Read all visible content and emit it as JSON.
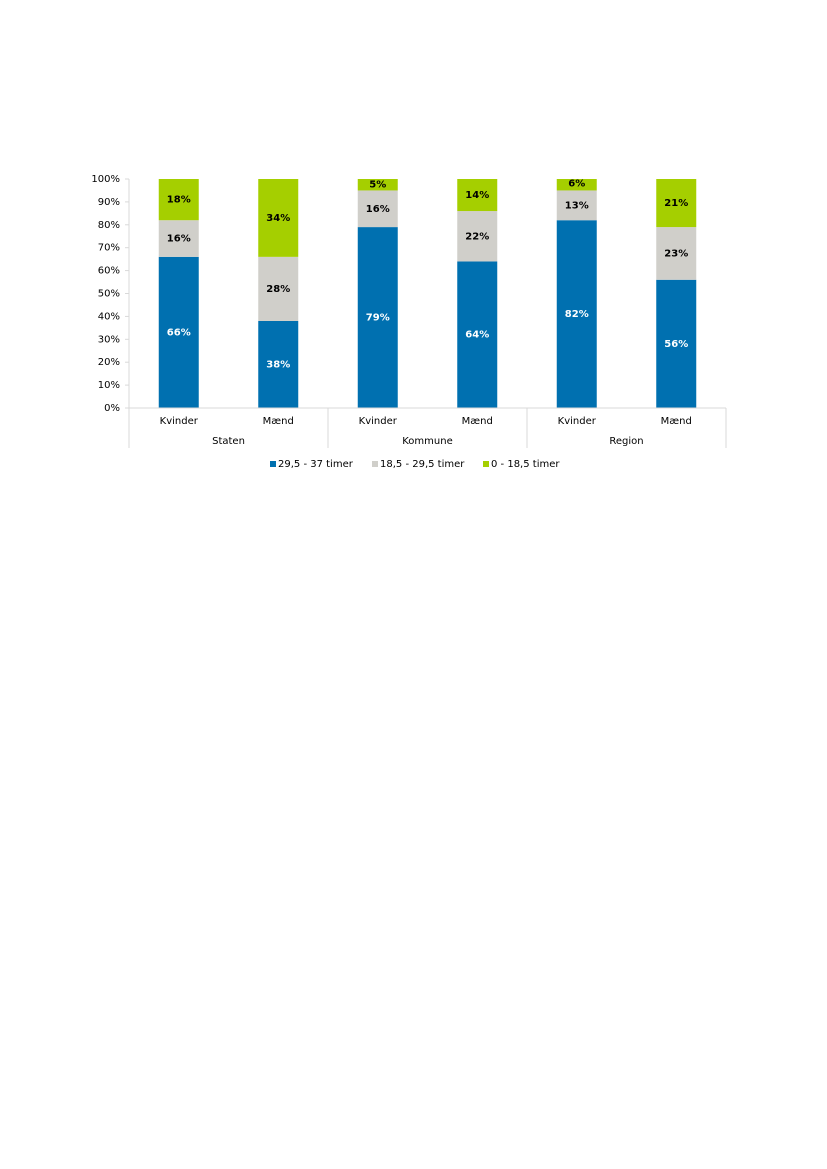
{
  "chart_data": {
    "type": "stacked_bar",
    "categories": [
      "Kvinder",
      "Mænd",
      "Kvinder",
      "Mænd",
      "Kvinder",
      "Mænd"
    ],
    "groups": [
      "Staten",
      "Kommune",
      "Region"
    ],
    "series": [
      {
        "name": "29,5 - 37 timer",
        "color": "#0070b0",
        "values": [
          66,
          38,
          79,
          64,
          82,
          56
        ],
        "value_labels": [
          "66%",
          "38%",
          "79%",
          "64%",
          "82%",
          "56%"
        ]
      },
      {
        "name": "18,5 - 29,5 timer",
        "color": "#d0cfca",
        "values": [
          16,
          28,
          16,
          22,
          13,
          23
        ],
        "value_labels": [
          "16%",
          "28%",
          "16%",
          "22%",
          "13%",
          "23%"
        ]
      },
      {
        "name": "0 - 18,5 timer",
        "color": "#a5cf00",
        "values": [
          18,
          34,
          5,
          14,
          6,
          21
        ],
        "value_labels": [
          "18%",
          "34%",
          "5%",
          "14%",
          "6%",
          "21%"
        ]
      }
    ],
    "ylim": [
      0,
      100
    ],
    "yticks": [
      {
        "value": 0,
        "label": "0%"
      },
      {
        "value": 10,
        "label": "10%"
      },
      {
        "value": 20,
        "label": "20%"
      },
      {
        "value": 30,
        "label": "30%"
      },
      {
        "value": 40,
        "label": "40%"
      },
      {
        "value": 50,
        "label": "50%"
      },
      {
        "value": 60,
        "label": "60%"
      },
      {
        "value": 70,
        "label": "70%"
      },
      {
        "value": 80,
        "label": "80%"
      },
      {
        "value": 90,
        "label": "90%"
      },
      {
        "value": 100,
        "label": "100%"
      }
    ],
    "legend": "bottom"
  }
}
